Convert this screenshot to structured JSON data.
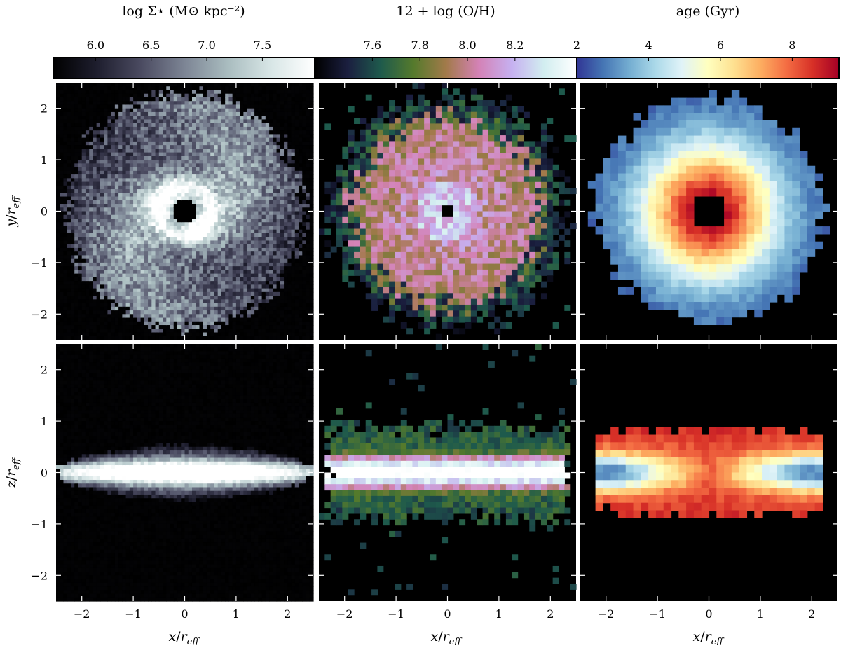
{
  "chart_data": {
    "type": "heatmap",
    "colorbars": [
      {
        "id": "sigma",
        "title": "log Σ⋆ (M⊙ kpc⁻²)",
        "ticks": [
          "6.0",
          "6.5",
          "7.0",
          "7.5"
        ],
        "tick_values": [
          6.0,
          6.5,
          7.0,
          7.5
        ],
        "range": [
          5.62,
          7.97
        ],
        "colormap": "bone",
        "stops": [
          "#000000",
          "#1e1e2e",
          "#4a4a60",
          "#7c8494",
          "#a9bcbf",
          "#d8e6e6",
          "#ffffff"
        ]
      },
      {
        "id": "metallicity",
        "title": "12 + log (O/H)",
        "ticks": [
          "7.6",
          "7.8",
          "8.0",
          "8.2"
        ],
        "tick_values": [
          7.6,
          7.8,
          8.0,
          8.2
        ],
        "range": [
          7.36,
          8.46
        ],
        "colormap": "cubehelix",
        "stops": [
          "#000000",
          "#1b1f40",
          "#1e5a4c",
          "#557a2c",
          "#a27a4a",
          "#d482b6",
          "#c6b0f0",
          "#d2eef0",
          "#ffffff"
        ]
      },
      {
        "id": "age",
        "title": "age (Gyr)",
        "ticks": [
          "2",
          "4",
          "6",
          "8"
        ],
        "tick_values": [
          2,
          4,
          6,
          8
        ],
        "range": [
          2.0,
          9.3
        ],
        "colormap": "RdYlBu_r",
        "stops": [
          "#313695",
          "#4575b4",
          "#74add1",
          "#abd9e9",
          "#e0f3f8",
          "#ffffbf",
          "#fee090",
          "#fdae61",
          "#f46d43",
          "#d73027",
          "#a50026"
        ]
      }
    ],
    "panels": [
      {
        "row": "face-on",
        "quantity": "sigma",
        "xlim": [
          -2.5,
          2.5
        ],
        "ylim": [
          -2.5,
          2.5
        ]
      },
      {
        "row": "face-on",
        "quantity": "metallicity",
        "xlim": [
          -2.5,
          2.5
        ],
        "ylim": [
          -2.5,
          2.5
        ]
      },
      {
        "row": "face-on",
        "quantity": "age",
        "xlim": [
          -2.5,
          2.5
        ],
        "ylim": [
          -2.5,
          2.5
        ]
      },
      {
        "row": "edge-on",
        "quantity": "sigma",
        "xlim": [
          -2.5,
          2.5
        ],
        "ylim": [
          -2.5,
          2.5
        ]
      },
      {
        "row": "edge-on",
        "quantity": "metallicity",
        "xlim": [
          -2.5,
          2.5
        ],
        "ylim": [
          -2.5,
          2.5
        ]
      },
      {
        "row": "edge-on",
        "quantity": "age",
        "xlim": [
          -2.5,
          2.5
        ],
        "ylim": [
          -2.5,
          2.5
        ]
      }
    ],
    "face_on_structure": {
      "sigma": {
        "hole_radius": 0.22,
        "bright_ring": 0.5,
        "disk_radius": 2.3,
        "spiral_arms": 2
      },
      "metallicity": {
        "hole_radius": 0.15,
        "center_value": 8.3,
        "edge_value": 7.7,
        "disk_radius": 2.3
      },
      "age": {
        "hole_half_width": 0.25,
        "center_value": 9.2,
        "edge_value": 2.4,
        "disk_radius": 2.2
      }
    },
    "edge_on_structure": {
      "sigma": {
        "half_length": 2.3,
        "half_thickness": 0.5
      },
      "metallicity": {
        "half_length": 2.3,
        "half_thickness": 0.9
      },
      "age": {
        "half_length": 2.3,
        "half_thickness": 0.85,
        "center_value": 8.0,
        "midplane_end_value": 2.5
      }
    },
    "x_ticks": [
      "−2",
      "−1",
      "0",
      "1",
      "2"
    ],
    "y_ticks": [
      "−2",
      "−1",
      "0",
      "1",
      "2"
    ],
    "tick_values": [
      -2,
      -1,
      0,
      1,
      2
    ],
    "xlabel": {
      "main": "x",
      "sep": "/",
      "r": "r",
      "sub": "eff"
    },
    "ylabel_top": {
      "main": "y",
      "sep": "/",
      "r": "r",
      "sub": "eff"
    },
    "ylabel_bottom": {
      "main": "z",
      "sep": "/",
      "r": "r",
      "sub": "eff"
    },
    "grid": false,
    "legend": "none"
  }
}
